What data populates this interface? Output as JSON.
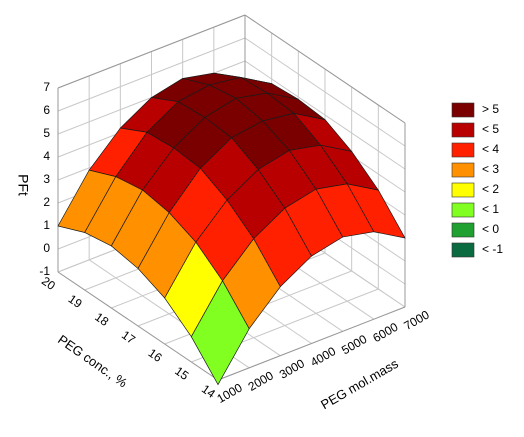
{
  "chart_data": {
    "type": "surface",
    "x_label": "PEG conc., %",
    "y_label": "PEG mol.mass",
    "z_label": "PFt",
    "x": [
      14,
      15,
      16,
      17,
      18,
      19,
      20
    ],
    "y": [
      1000,
      2000,
      3000,
      4000,
      5000,
      6000,
      7000
    ],
    "z": [
      [
        -1.2,
        0.7,
        2.0,
        2.8,
        3.1,
        2.8,
        2.0
      ],
      [
        0.1,
        2.0,
        3.3,
        4.1,
        4.4,
        4.1,
        3.3
      ],
      [
        1.0,
        2.9,
        4.2,
        5.0,
        5.3,
        5.0,
        4.2
      ],
      [
        1.5,
        3.4,
        4.8,
        5.6,
        5.8,
        5.6,
        4.8
      ],
      [
        1.7,
        3.6,
        4.9,
        5.7,
        6.0,
        5.7,
        4.9
      ],
      [
        1.5,
        3.4,
        4.8,
        5.6,
        5.8,
        5.6,
        4.8
      ],
      [
        1.0,
        2.9,
        4.2,
        5.0,
        5.3,
        5.0,
        4.2
      ]
    ],
    "xlim": [
      14,
      20
    ],
    "xticks": [
      14,
      15,
      16,
      17,
      18,
      19,
      20
    ],
    "ylim": [
      1000,
      7000
    ],
    "yticks": [
      1000,
      2000,
      3000,
      4000,
      5000,
      6000,
      7000
    ],
    "zlim": [
      -1,
      7
    ],
    "zticks": [
      -1,
      0,
      1,
      2,
      3,
      4,
      5,
      6,
      7
    ],
    "grid": true,
    "legend": [
      {
        "value": 5,
        "label": "> 5",
        "color": "#7a0000"
      },
      {
        "value": 5,
        "label": "< 5",
        "color": "#b80000"
      },
      {
        "value": 4,
        "label": "< 4",
        "color": "#ff2000"
      },
      {
        "value": 3,
        "label": "< 3",
        "color": "#ff9000"
      },
      {
        "value": 2,
        "label": "< 2",
        "color": "#ffff00"
      },
      {
        "value": 1,
        "label": "< 1",
        "color": "#80ff20"
      },
      {
        "value": 0,
        "label": "< 0",
        "color": "#20a030"
      },
      {
        "value": -1,
        "label": "< -1",
        "color": "#0a6a40"
      }
    ]
  }
}
